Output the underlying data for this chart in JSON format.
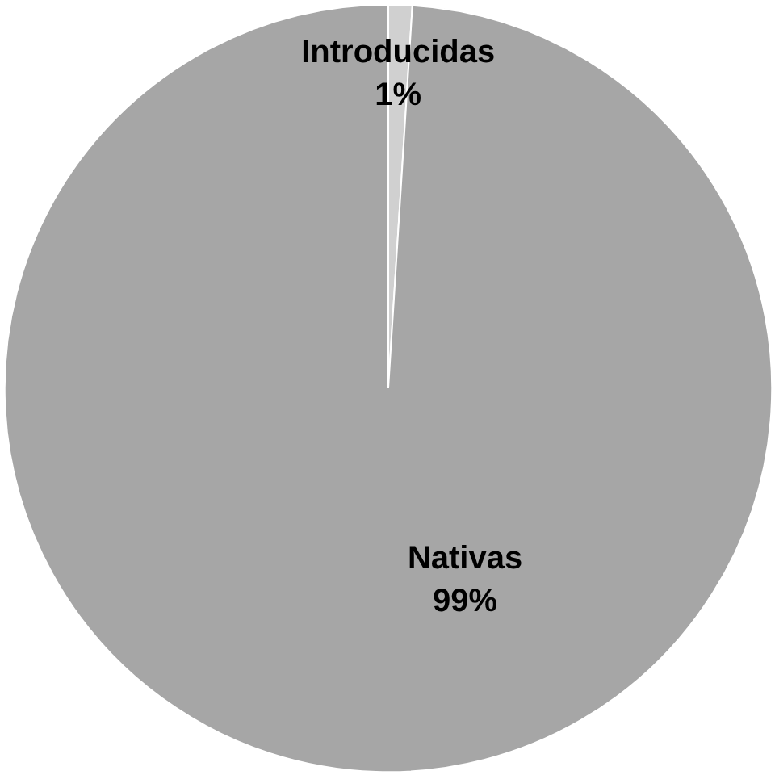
{
  "chart_data": {
    "type": "pie",
    "categories": [
      "Introducidas",
      "Nativas"
    ],
    "values": [
      1,
      99
    ],
    "colors": [
      "#d0d0d0",
      "#a6a6a6"
    ],
    "value_labels": [
      "1%",
      "99%"
    ]
  }
}
